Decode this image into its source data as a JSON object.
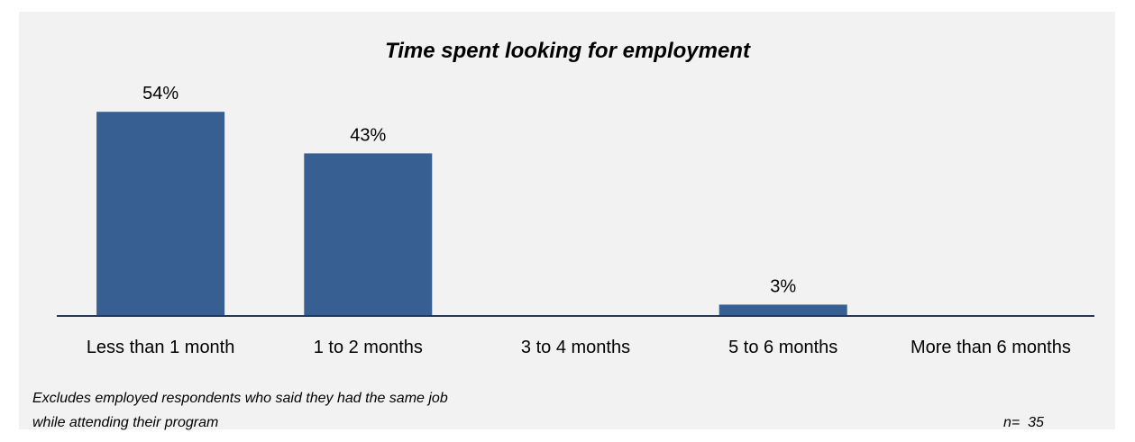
{
  "chart_data": {
    "type": "bar",
    "title": "Time spent looking for employment",
    "categories": [
      "Less than 1 month",
      "1 to 2 months",
      "3 to 4 months",
      "5 to 6 months",
      "More than 6 months"
    ],
    "values": [
      54,
      43,
      0,
      3,
      0
    ],
    "data_labels": [
      "54%",
      "43%",
      "",
      "3%",
      ""
    ],
    "unit": "%",
    "ylim": [
      0,
      60
    ],
    "grid": false,
    "legend": "none",
    "bar_color": "#375f91",
    "axis_color": "#1f3864"
  },
  "notes": {
    "line1": "Excludes employed respondents who said they had the same job",
    "line2": "while attending their program",
    "n_label": "n=  35"
  },
  "colors": {
    "panel_background": "#f2f2f2",
    "page_background": "#ffffff"
  }
}
